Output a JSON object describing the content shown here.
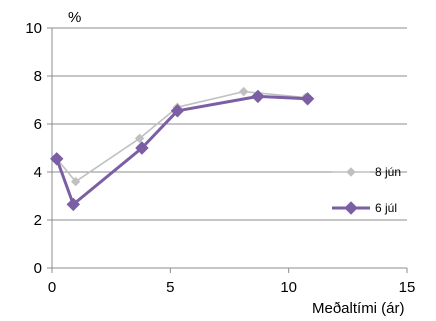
{
  "chart_data": {
    "type": "line",
    "ylabel": "%",
    "xlabel": "Meðaltími (ár)",
    "xlim": [
      0,
      15
    ],
    "ylim": [
      0,
      10
    ],
    "x_ticks": [
      0,
      5,
      10,
      15
    ],
    "y_ticks": [
      0,
      2,
      4,
      6,
      8,
      10
    ],
    "grid": "horizontal",
    "legend_position": "right",
    "series": [
      {
        "name": "8 jún",
        "color": "#c0c0c0",
        "marker": "diamond",
        "points": [
          {
            "x": 0.2,
            "y": 4.55
          },
          {
            "x": 1.0,
            "y": 3.6
          },
          {
            "x": 3.7,
            "y": 5.4
          },
          {
            "x": 5.3,
            "y": 6.7
          },
          {
            "x": 8.1,
            "y": 7.35
          },
          {
            "x": 10.7,
            "y": 7.1
          }
        ]
      },
      {
        "name": "6 júl",
        "color": "#7b5ea3",
        "marker": "diamond",
        "points": [
          {
            "x": 0.2,
            "y": 4.55
          },
          {
            "x": 0.9,
            "y": 2.65
          },
          {
            "x": 3.8,
            "y": 5.0
          },
          {
            "x": 5.3,
            "y": 6.55
          },
          {
            "x": 8.7,
            "y": 7.15
          },
          {
            "x": 10.8,
            "y": 7.05
          }
        ]
      }
    ]
  }
}
